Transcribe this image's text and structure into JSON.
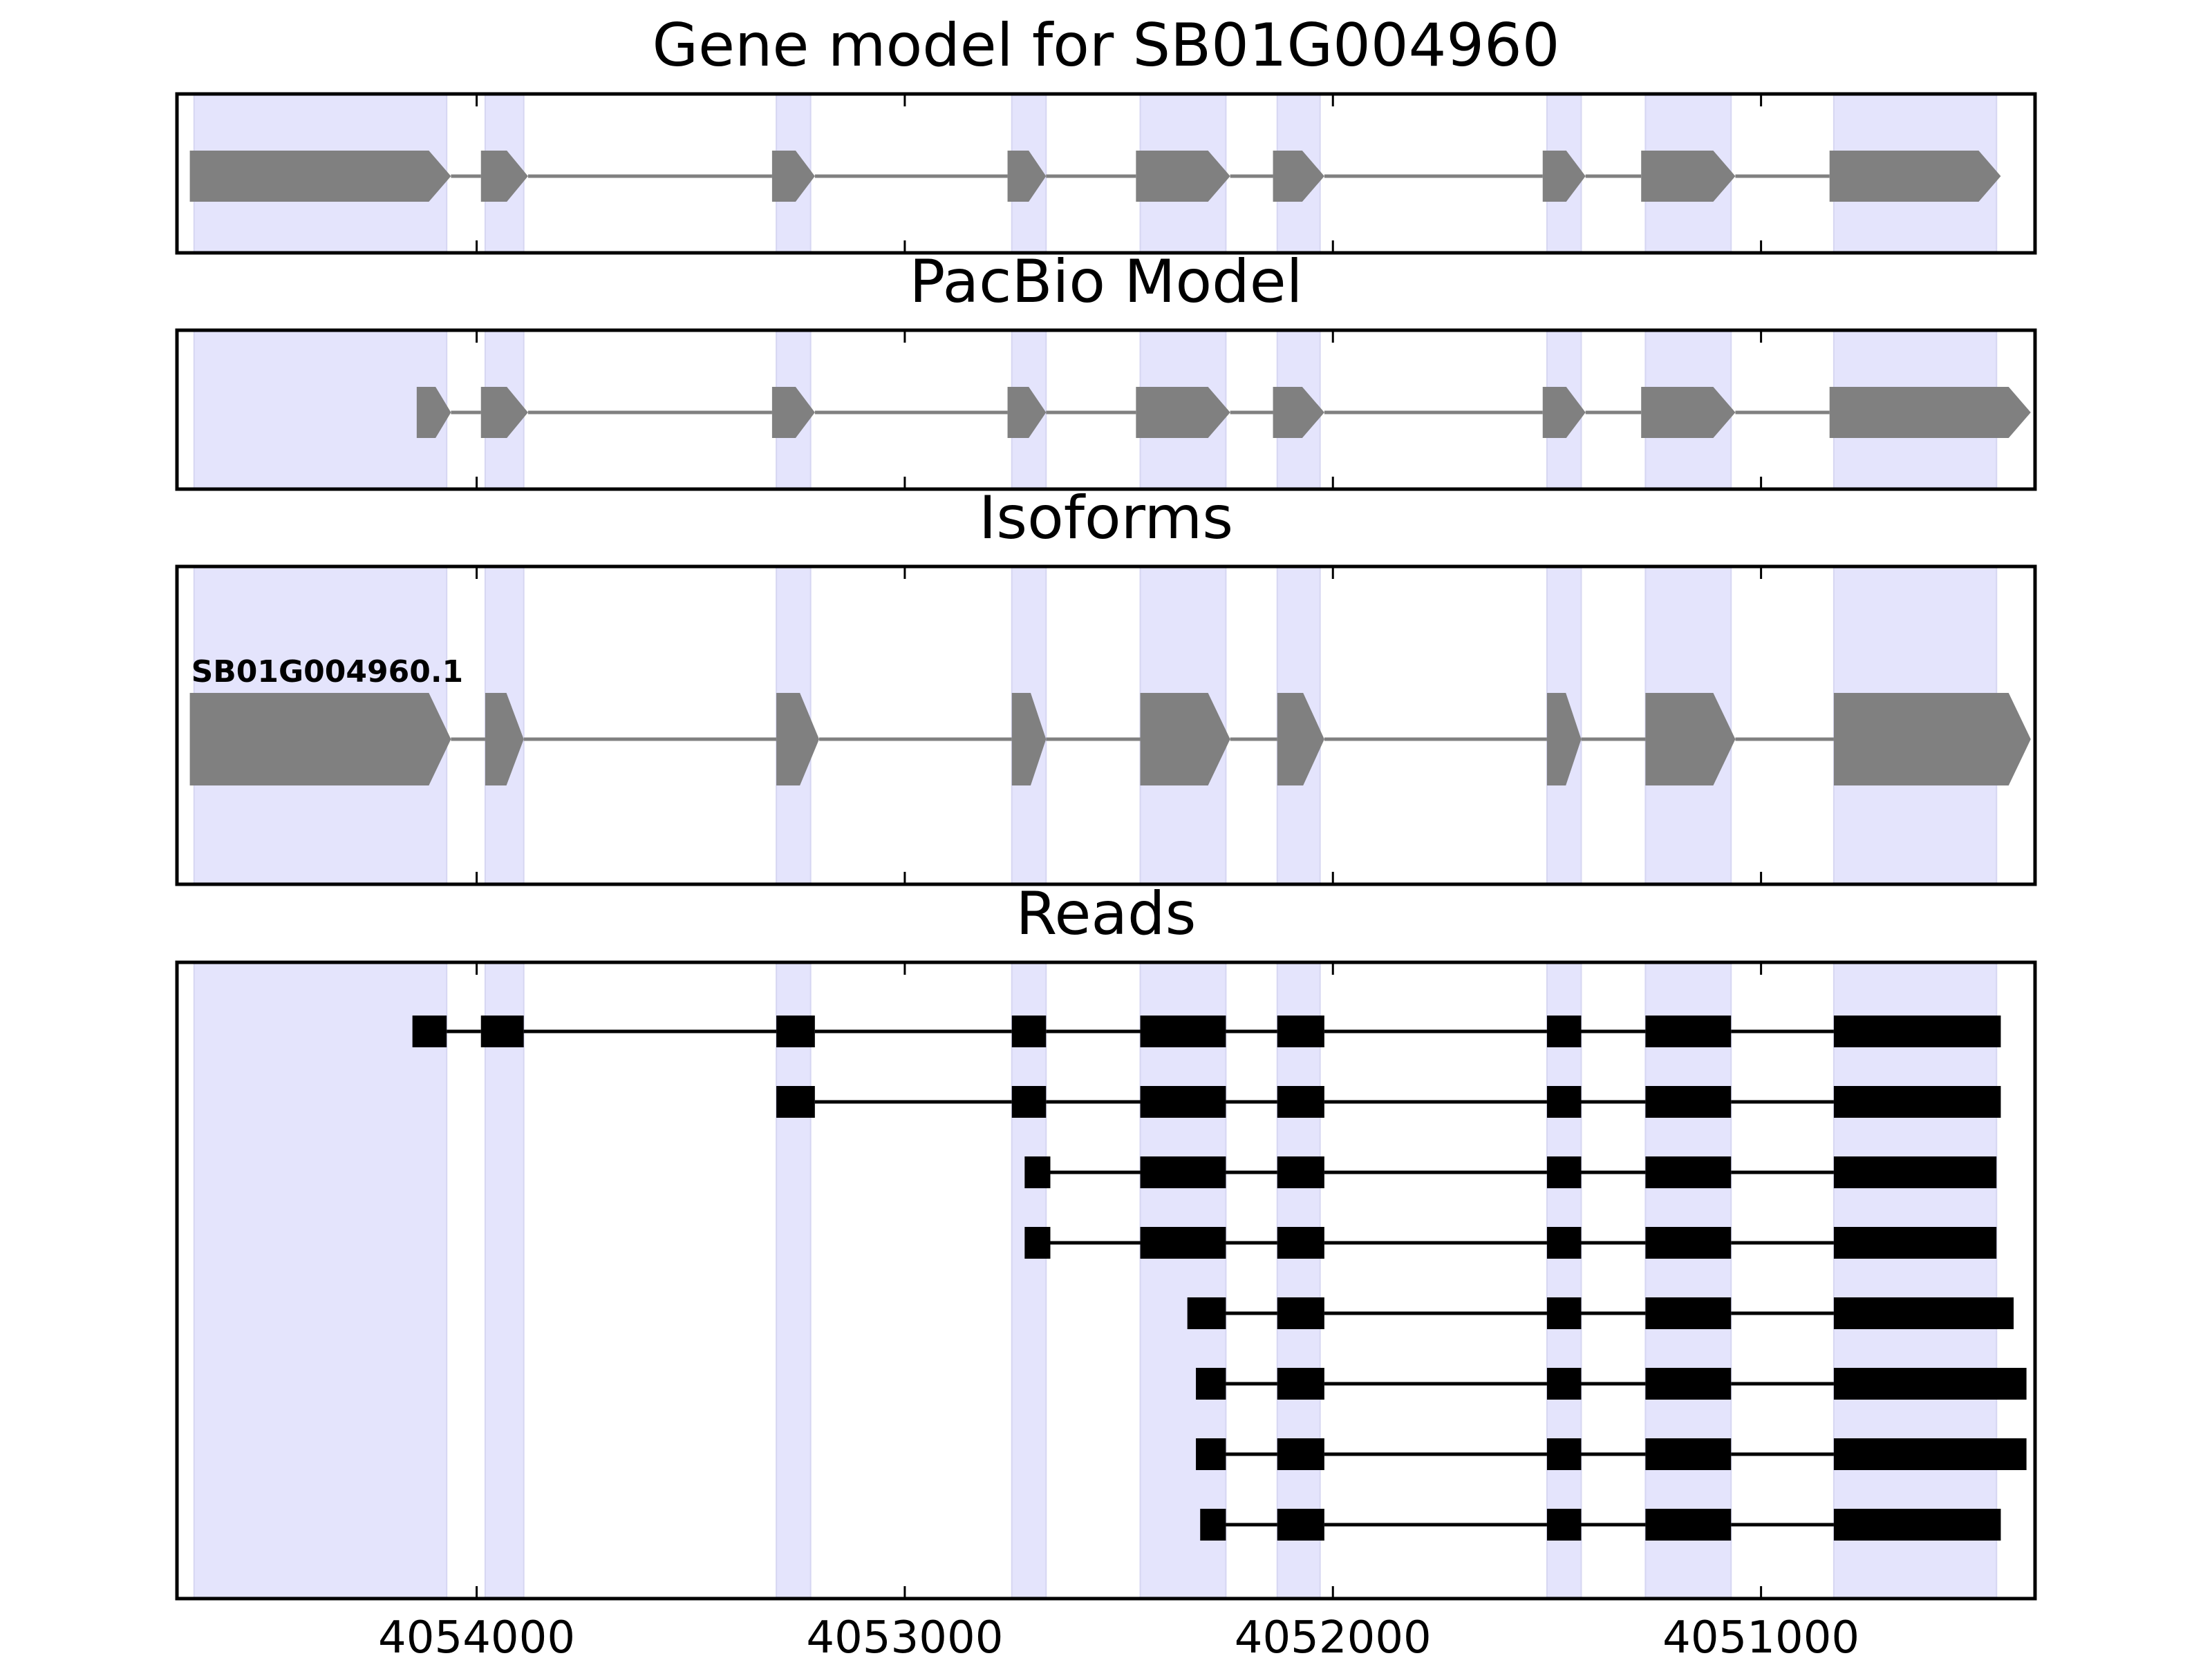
{
  "chart_data": {
    "type": "gene-structure",
    "x_axis": {
      "ticks": [
        4054000,
        4053000,
        4052000,
        4051000
      ],
      "tick_labels": [
        "4054000",
        "4053000",
        "4052000",
        "4051000"
      ],
      "reversed": true,
      "range": [
        4054700,
        4050360
      ]
    },
    "highlight_color": "#E4E4FC",
    "feature_color": "#808080",
    "read_color": "#000000",
    "highlight_regions": [
      [
        4054660,
        4054070
      ],
      [
        4053980,
        4053890
      ],
      [
        4053300,
        4053220
      ],
      [
        4052750,
        4052670
      ],
      [
        4052450,
        4052250
      ],
      [
        4052130,
        4052030
      ],
      [
        4051500,
        4051420
      ],
      [
        4051270,
        4051070
      ],
      [
        4050830,
        4050450
      ]
    ],
    "panels": [
      {
        "title": "Gene model for SB01G004960",
        "kind": "model",
        "tracks": [
          {
            "label": "",
            "exons": [
              [
                4054670,
                4054060
              ],
              [
                4053990,
                4053880
              ],
              [
                4053310,
                4053210
              ],
              [
                4052760,
                4052670
              ],
              [
                4052460,
                4052240
              ],
              [
                4052140,
                4052020
              ],
              [
                4051510,
                4051410
              ],
              [
                4051280,
                4051060
              ],
              [
                4050840,
                4050440
              ]
            ]
          }
        ]
      },
      {
        "title": "PacBio Model",
        "kind": "model",
        "tracks": [
          {
            "label": "",
            "exons": [
              [
                4054140,
                4054060
              ],
              [
                4053990,
                4053880
              ],
              [
                4053310,
                4053210
              ],
              [
                4052760,
                4052670
              ],
              [
                4052460,
                4052240
              ],
              [
                4052140,
                4052020
              ],
              [
                4051510,
                4051410
              ],
              [
                4051280,
                4051060
              ],
              [
                4050840,
                4050370
              ]
            ]
          }
        ]
      },
      {
        "title": "Isoforms",
        "kind": "isoform",
        "tracks": [
          {
            "label": "SB01G004960.1",
            "exons": [
              [
                4054670,
                4054060
              ],
              [
                4053980,
                4053890
              ],
              [
                4053300,
                4053200
              ],
              [
                4052750,
                4052670
              ],
              [
                4052450,
                4052240
              ],
              [
                4052130,
                4052020
              ],
              [
                4051500,
                4051420
              ],
              [
                4051270,
                4051060
              ],
              [
                4050830,
                4050370
              ]
            ]
          }
        ]
      },
      {
        "title": "Reads",
        "kind": "reads",
        "tracks": [
          {
            "label": "",
            "exons": [
              [
                4054150,
                4054070
              ],
              [
                4053990,
                4053890
              ],
              [
                4053300,
                4053210
              ],
              [
                4052750,
                4052670
              ],
              [
                4052450,
                4052250
              ],
              [
                4052130,
                4052020
              ],
              [
                4051500,
                4051420
              ],
              [
                4051270,
                4051070
              ],
              [
                4050830,
                4050440
              ]
            ]
          },
          {
            "label": "",
            "exons": [
              [
                4053300,
                4053210
              ],
              [
                4052750,
                4052670
              ],
              [
                4052450,
                4052250
              ],
              [
                4052130,
                4052020
              ],
              [
                4051500,
                4051420
              ],
              [
                4051270,
                4051070
              ],
              [
                4050830,
                4050440
              ]
            ]
          },
          {
            "label": "",
            "exons": [
              [
                4052720,
                4052660
              ],
              [
                4052450,
                4052250
              ],
              [
                4052130,
                4052020
              ],
              [
                4051500,
                4051420
              ],
              [
                4051270,
                4051070
              ],
              [
                4050830,
                4050450
              ]
            ]
          },
          {
            "label": "",
            "exons": [
              [
                4052720,
                4052660
              ],
              [
                4052450,
                4052250
              ],
              [
                4052130,
                4052020
              ],
              [
                4051500,
                4051420
              ],
              [
                4051270,
                4051070
              ],
              [
                4050830,
                4050450
              ]
            ]
          },
          {
            "label": "",
            "exons": [
              [
                4052340,
                4052250
              ],
              [
                4052130,
                4052020
              ],
              [
                4051500,
                4051420
              ],
              [
                4051270,
                4051070
              ],
              [
                4050830,
                4050410
              ]
            ]
          },
          {
            "label": "",
            "exons": [
              [
                4052320,
                4052250
              ],
              [
                4052130,
                4052020
              ],
              [
                4051500,
                4051420
              ],
              [
                4051270,
                4051070
              ],
              [
                4050830,
                4050380
              ]
            ]
          },
          {
            "label": "",
            "exons": [
              [
                4052320,
                4052250
              ],
              [
                4052130,
                4052020
              ],
              [
                4051500,
                4051420
              ],
              [
                4051270,
                4051070
              ],
              [
                4050830,
                4050380
              ]
            ]
          },
          {
            "label": "",
            "exons": [
              [
                4052310,
                4052250
              ],
              [
                4052130,
                4052020
              ],
              [
                4051500,
                4051420
              ],
              [
                4051270,
                4051070
              ],
              [
                4050830,
                4050440
              ]
            ]
          }
        ]
      }
    ]
  }
}
